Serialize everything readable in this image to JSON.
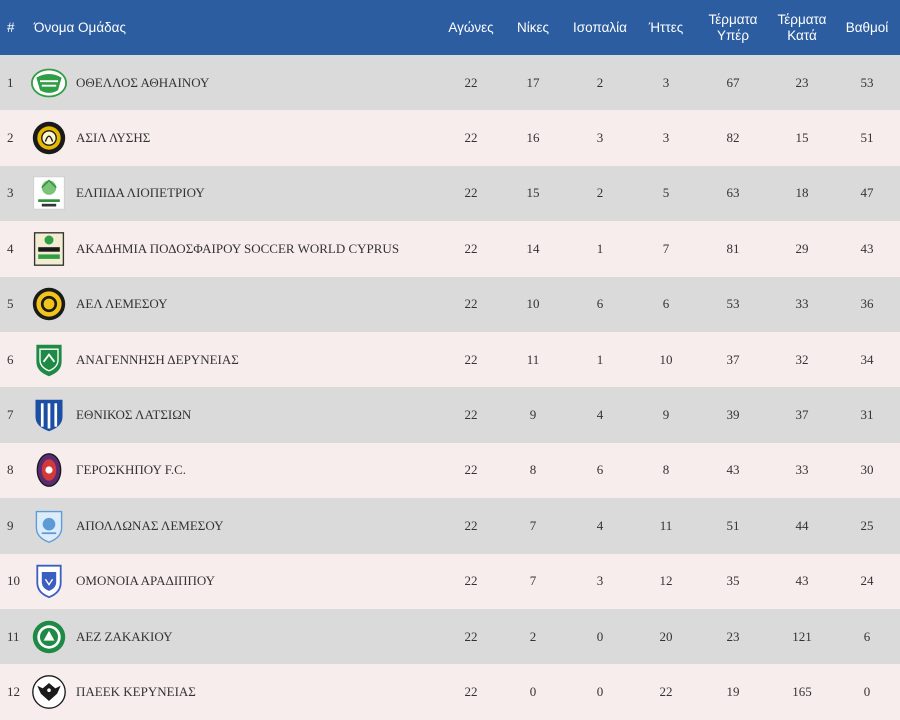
{
  "headers": {
    "pos": "#",
    "team": "Όνομα Ομάδας",
    "played": "Αγώνες",
    "wins": "Νίκες",
    "draws": "Ισοπαλία",
    "losses": "Ήττες",
    "goals_for": "Τέρματα Υπέρ",
    "goals_against": "Τέρματα Κατά",
    "points": "Βαθμοί"
  },
  "colors": {
    "header_bg": "#2b5da0",
    "row_odd": "#dadada",
    "row_even": "#f8eded"
  },
  "rows": [
    {
      "pos": "1",
      "team": "ΟΘΕΛΛΟΣ ΑΘΗΑΙΝΟΥ",
      "logo": "othellos-logo",
      "played": "22",
      "wins": "17",
      "draws": "2",
      "losses": "3",
      "goals_for": "67",
      "goals_against": "23",
      "points": "53"
    },
    {
      "pos": "2",
      "team": "ΑΣΙΛ ΛΥΣΗΣ",
      "logo": "asil-logo",
      "played": "22",
      "wins": "16",
      "draws": "3",
      "losses": "3",
      "goals_for": "82",
      "goals_against": "15",
      "points": "51"
    },
    {
      "pos": "3",
      "team": "ΕΛΠΙΔΑ ΛΙΟΠΕΤΡΙΟΥ",
      "logo": "elpida-logo",
      "played": "22",
      "wins": "15",
      "draws": "2",
      "losses": "5",
      "goals_for": "63",
      "goals_against": "18",
      "points": "47"
    },
    {
      "pos": "4",
      "team": "ΑΚΑΔΗΜΙΑ ΠΟΔΟΣΦΑΙΡΟΥ SOCCER WORLD CYPRUS",
      "logo": "soccer-world-logo",
      "played": "22",
      "wins": "14",
      "draws": "1",
      "losses": "7",
      "goals_for": "81",
      "goals_against": "29",
      "points": "43"
    },
    {
      "pos": "5",
      "team": "ΑΕΛ ΛΕΜΕΣΟΥ",
      "logo": "ael-logo",
      "played": "22",
      "wins": "10",
      "draws": "6",
      "losses": "6",
      "goals_for": "53",
      "goals_against": "33",
      "points": "36"
    },
    {
      "pos": "6",
      "team": "ΑΝΑΓΕΝΝΗΣΗ ΔΕΡΥΝΕΙΑΣ",
      "logo": "anagennisi-logo",
      "played": "22",
      "wins": "11",
      "draws": "1",
      "losses": "10",
      "goals_for": "37",
      "goals_against": "32",
      "points": "34"
    },
    {
      "pos": "7",
      "team": "ΕΘΝΙΚΟΣ ΛΑΤΣΙΩΝ",
      "logo": "ethnikos-logo",
      "played": "22",
      "wins": "9",
      "draws": "4",
      "losses": "9",
      "goals_for": "39",
      "goals_against": "37",
      "points": "31"
    },
    {
      "pos": "8",
      "team": "ΓΕΡΟΣΚΗΠΟΥ F.C.",
      "logo": "geroskipou-logo",
      "played": "22",
      "wins": "8",
      "draws": "6",
      "losses": "8",
      "goals_for": "43",
      "goals_against": "33",
      "points": "30"
    },
    {
      "pos": "9",
      "team": "ΑΠΟΛΛΩΝΑΣ ΛΕΜΕΣΟΥ",
      "logo": "apollon-logo",
      "played": "22",
      "wins": "7",
      "draws": "4",
      "losses": "11",
      "goals_for": "51",
      "goals_against": "44",
      "points": "25"
    },
    {
      "pos": "10",
      "team": "ΟΜΟΝΟΙΑ ΑΡΑΔΙΠΠΟΥ",
      "logo": "omonia-logo",
      "played": "22",
      "wins": "7",
      "draws": "3",
      "losses": "12",
      "goals_for": "35",
      "goals_against": "43",
      "points": "24"
    },
    {
      "pos": "11",
      "team": "ΑΕΖ ΖΑΚΑΚΙΟΥ",
      "logo": "aez-logo",
      "played": "22",
      "wins": "2",
      "draws": "0",
      "losses": "20",
      "goals_for": "23",
      "goals_against": "121",
      "points": "6"
    },
    {
      "pos": "12",
      "team": "ΠΑΕΕΚ ΚΕΡΥΝΕΙΑΣ",
      "logo": "paeek-logo",
      "played": "22",
      "wins": "0",
      "draws": "0",
      "losses": "22",
      "goals_for": "19",
      "goals_against": "165",
      "points": "0"
    }
  ]
}
